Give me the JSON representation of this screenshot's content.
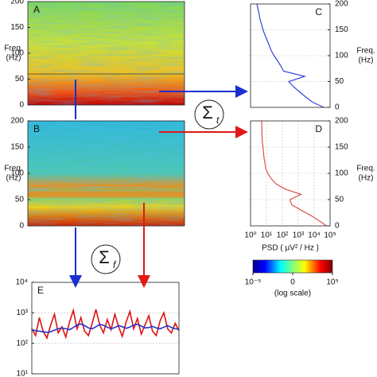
{
  "chart_data": [
    {
      "type": "spectrogram",
      "label": "A",
      "ylabel": [
        "Freq.",
        "(Hz)"
      ],
      "ylim": [
        0,
        200
      ],
      "yticks": [
        0,
        50,
        100,
        150,
        200
      ],
      "line_at": 60
    },
    {
      "type": "spectrogram",
      "label": "B",
      "ylabel": [
        "Freq.",
        "(Hz)"
      ],
      "ylim": [
        0,
        200
      ],
      "yticks": [
        0,
        50,
        100,
        150,
        200
      ],
      "band_at": 60
    },
    {
      "type": "line",
      "label": "C",
      "ylabel": [
        "Freq.",
        "(Hz)"
      ],
      "log_x": true,
      "xlim": [
        1,
        100000
      ],
      "ylim": [
        0,
        200
      ],
      "yticks": [
        0,
        50,
        100,
        150,
        200
      ],
      "grid": true,
      "series": [
        {
          "color": "#3345d6",
          "x": [
            40000,
            8000,
            3000,
            1200,
            500,
            250,
            2500,
            120,
            80,
            50,
            30,
            20,
            15,
            11,
            8,
            6,
            5,
            4,
            3.5,
            3,
            2.5
          ],
          "y": [
            0,
            10,
            20,
            30,
            40,
            50,
            60,
            70,
            80,
            90,
            100,
            110,
            120,
            130,
            140,
            150,
            160,
            170,
            180,
            190,
            200
          ]
        }
      ]
    },
    {
      "type": "line",
      "label": "D",
      "ylabel": [
        "Freq.",
        "(Hz)"
      ],
      "xlabel": "PSD ( µV² / Hz )",
      "log_x": true,
      "xlim": [
        1,
        100000
      ],
      "ylim": [
        0,
        200
      ],
      "yticks": [
        0,
        50,
        100,
        150,
        200
      ],
      "grid": true,
      "xticks": [
        {
          "value": 1,
          "label": "10⁰"
        },
        {
          "value": 10,
          "label": "10¹"
        },
        {
          "value": 100,
          "label": "10²"
        },
        {
          "value": 1000,
          "label": "10³"
        },
        {
          "value": 10000,
          "label": "10⁴"
        },
        {
          "value": 100000,
          "label": "10⁵"
        }
      ],
      "series": [
        {
          "color": "#e05050",
          "x": [
            60000,
            20000,
            6000,
            1500,
            400,
            300,
            1500,
            150,
            40,
            20,
            12,
            9,
            8,
            7,
            6.5,
            6,
            5.5,
            5.3,
            5.2,
            5.1,
            5
          ],
          "y": [
            0,
            10,
            20,
            30,
            40,
            50,
            60,
            70,
            80,
            90,
            100,
            110,
            120,
            130,
            140,
            150,
            160,
            170,
            180,
            190,
            200
          ]
        }
      ]
    },
    {
      "type": "colorbar",
      "xlim": [
        -5,
        5
      ],
      "xlabel": "(log scale)",
      "xticks": [
        {
          "value": -5,
          "label": "10⁻⁵"
        },
        {
          "value": 0,
          "label": "0"
        },
        {
          "value": 5,
          "label": "10⁵"
        }
      ]
    },
    {
      "type": "line",
      "label": "E",
      "log_y": true,
      "ylim": [
        10,
        10000
      ],
      "grid": true,
      "yticks": [
        {
          "value": 10,
          "label": "10¹"
        },
        {
          "value": 100,
          "label": "10²"
        },
        {
          "value": 1000,
          "label": "10³"
        },
        {
          "value": 10000,
          "label": "10⁴"
        }
      ],
      "series": [
        {
          "color": "#dd1111",
          "values": [
            300,
            180,
            700,
            250,
            150,
            400,
            900,
            220,
            350,
            160,
            500,
            1200,
            300,
            700,
            250,
            180,
            450,
            1300,
            400,
            220,
            600,
            280,
            900,
            350,
            170,
            500,
            1100,
            300,
            650,
            200,
            400,
            800,
            250,
            180,
            550,
            1000,
            300,
            220,
            450,
            260
          ]
        },
        {
          "color": "#2233cc",
          "values": [
            280,
            260,
            250,
            240,
            230,
            240,
            270,
            300,
            320,
            300,
            280,
            330,
            400,
            430,
            380,
            320,
            300,
            350,
            420,
            390,
            340,
            300,
            330,
            380,
            350,
            310,
            340,
            400,
            420,
            370,
            320,
            330,
            360,
            320,
            300,
            340,
            380,
            330,
            300,
            290
          ]
        }
      ]
    }
  ],
  "annotations": [
    {
      "symbol": "Σ",
      "subscript": "t"
    },
    {
      "symbol": "Σ",
      "subscript": "f"
    }
  ]
}
